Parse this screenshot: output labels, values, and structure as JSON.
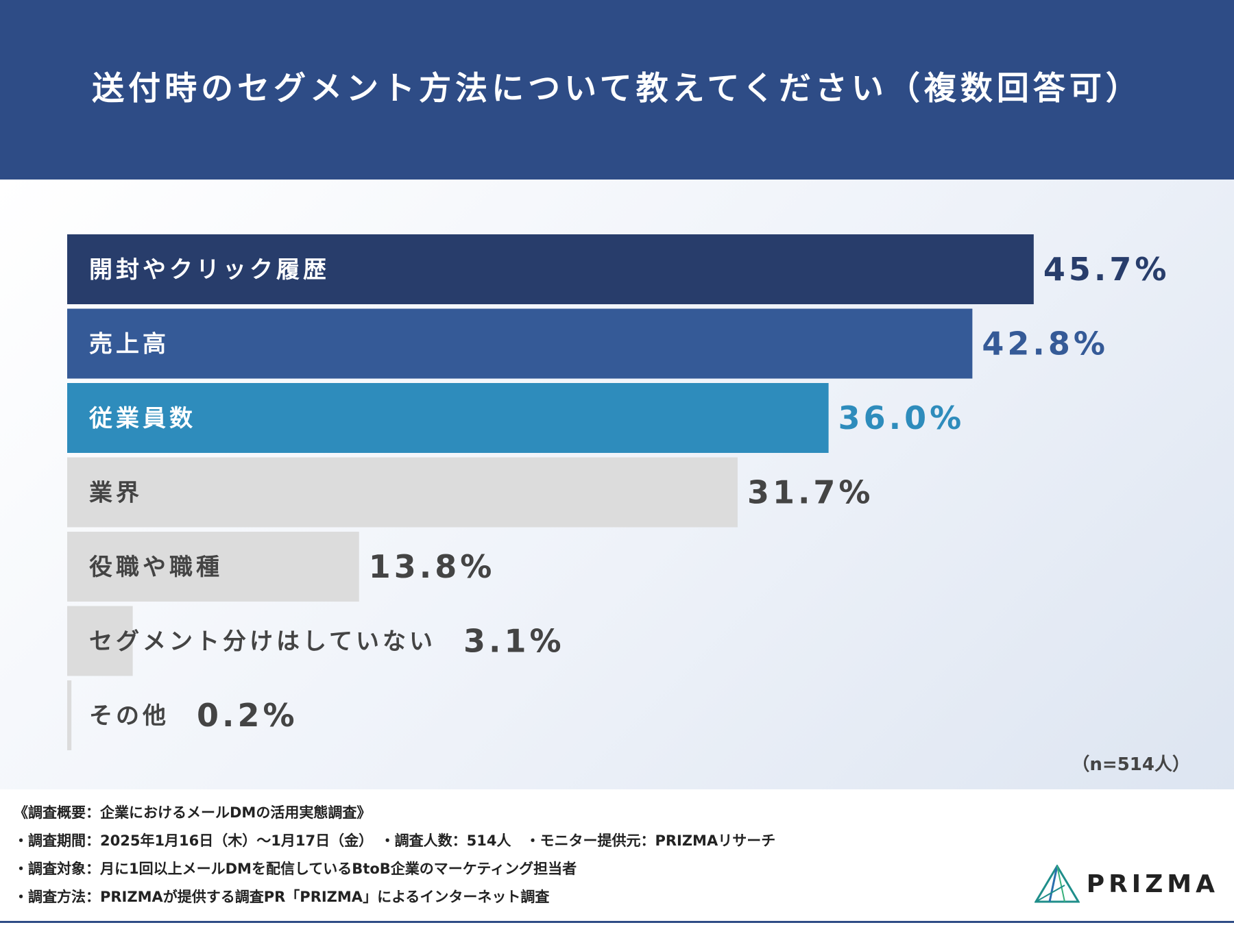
{
  "header": {
    "title": "送付時のセグメント方法について教えてください（複数回答可）"
  },
  "chart_data": {
    "type": "bar",
    "orientation": "horizontal",
    "categories": [
      "開封やクリック履歴",
      "売上高",
      "従業員数",
      "業界",
      "役職や職種",
      "セグメント分けはしていない",
      "その他"
    ],
    "values": [
      45.7,
      42.8,
      36.0,
      31.7,
      13.8,
      3.1,
      0.2
    ],
    "value_labels": [
      "45.7%",
      "42.8%",
      "36.0%",
      "31.7%",
      "13.8%",
      "3.1%",
      "0.2%"
    ],
    "unit": "%",
    "xlim": [
      0,
      50
    ],
    "grid": false,
    "colors": {
      "bars": [
        "#283d6b",
        "#355a97",
        "#2e8cbc",
        "#dcdcdc",
        "#dcdcdc",
        "#dcdcdc",
        "#dcdcdc"
      ],
      "labels_on_bar": [
        "#ffffff",
        "#ffffff",
        "#ffffff",
        "#444444",
        "#444444",
        "#444444",
        "#444444"
      ],
      "value_text": [
        "#283d6b",
        "#355a97",
        "#2e8cbc",
        "#444444",
        "#444444",
        "#444444",
        "#444444"
      ]
    }
  },
  "sample_size": "（n=514人）",
  "survey": {
    "lines": [
      "《調査概要：企業におけるメールDMの活用実態調査》",
      "・調査期間：2025年1月16日（木）〜1月17日（金）　・調査人数：514人　・モニター提供元：PRIZMAリサーチ",
      "・調査対象：月に1回以上メールDMを配信しているBtoB企業のマーケティング担当者",
      "・調査方法：PRIZMAが提供する調査PR「PRIZMA」によるインターネット調査"
    ]
  },
  "brand": {
    "name": "PRIZMA",
    "icon": "prism-logo-icon"
  }
}
